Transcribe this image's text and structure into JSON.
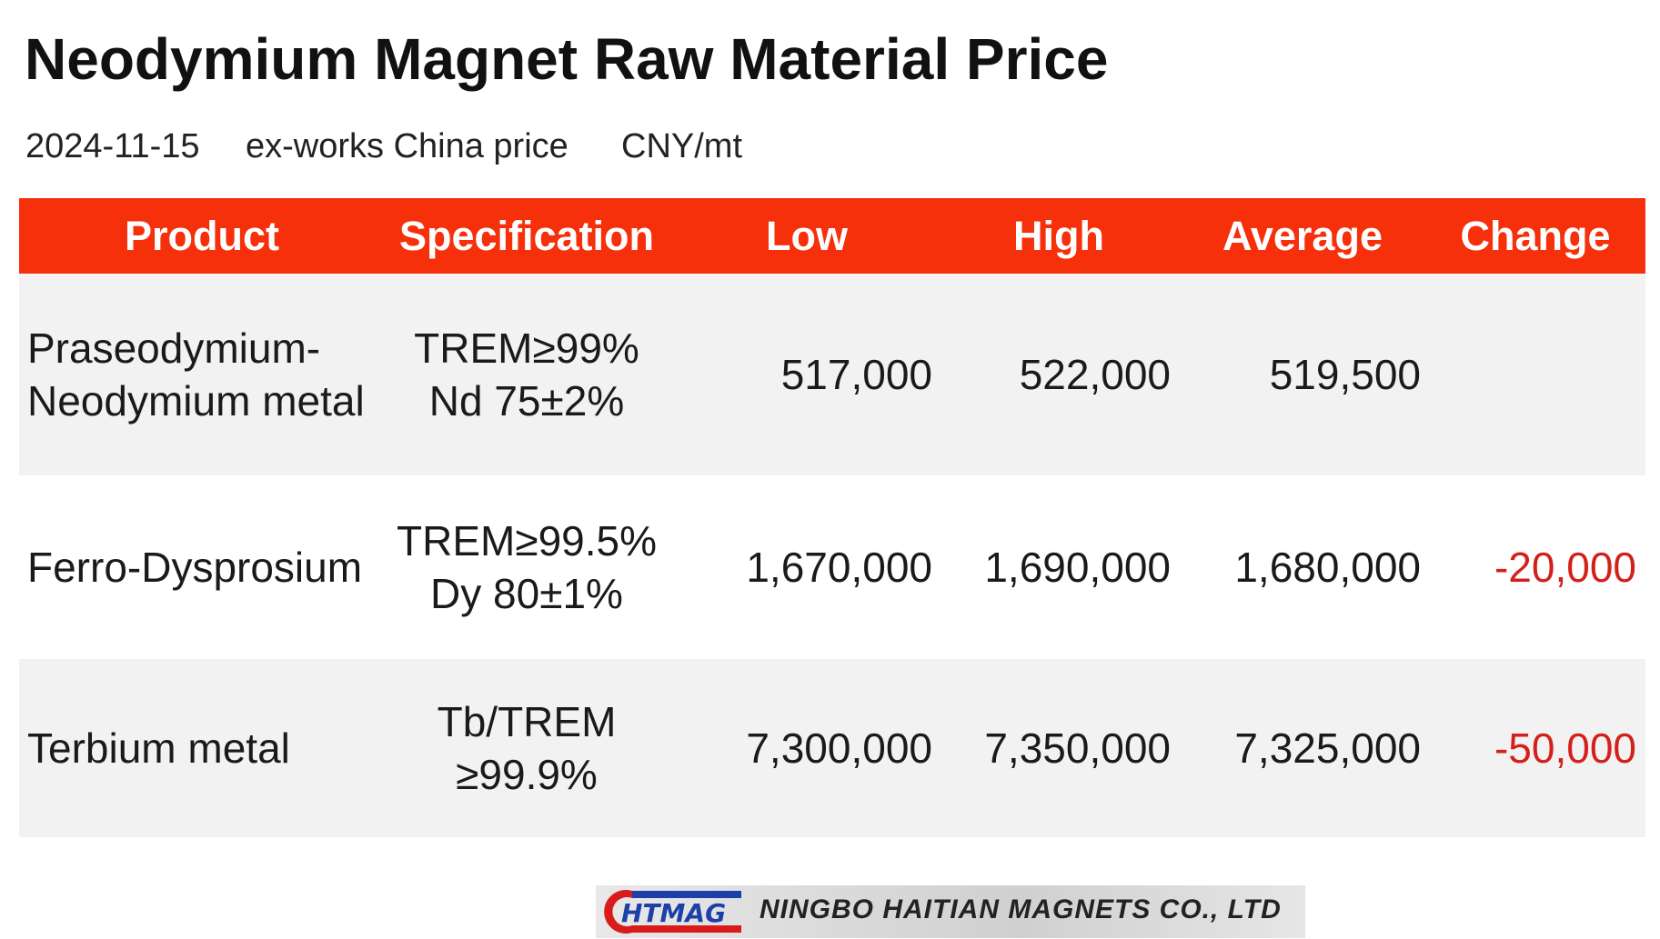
{
  "header": {
    "title": "Neodymium Magnet Raw Material Price",
    "date": "2024-11-15",
    "basis": "ex-works China price",
    "unit": "CNY/mt"
  },
  "table": {
    "columns": [
      "Product",
      "Specification",
      "Low",
      "High",
      "Average",
      "Change"
    ],
    "rows": [
      [
        [
          "Praseodymium-",
          "Neodymium metal"
        ],
        [
          "TREM≥99%",
          "Nd 75±2%"
        ],
        "517,000",
        "522,000",
        "519,500",
        null
      ],
      [
        [
          "Ferro-Dysprosium"
        ],
        [
          "TREM≥99.5%",
          "Dy 80±1%"
        ],
        "1,670,000",
        "1,690,000",
        "1,680,000",
        "-20,000"
      ],
      [
        [
          "Terbium metal"
        ],
        [
          "Tb/TREM",
          "≥99.9%"
        ],
        "7,300,000",
        "7,350,000",
        "7,325,000",
        "-50,000"
      ]
    ]
  },
  "footer": {
    "logo": "HTMAG",
    "company": "NINGBO HAITIAN MAGNETS CO., LTD"
  }
}
